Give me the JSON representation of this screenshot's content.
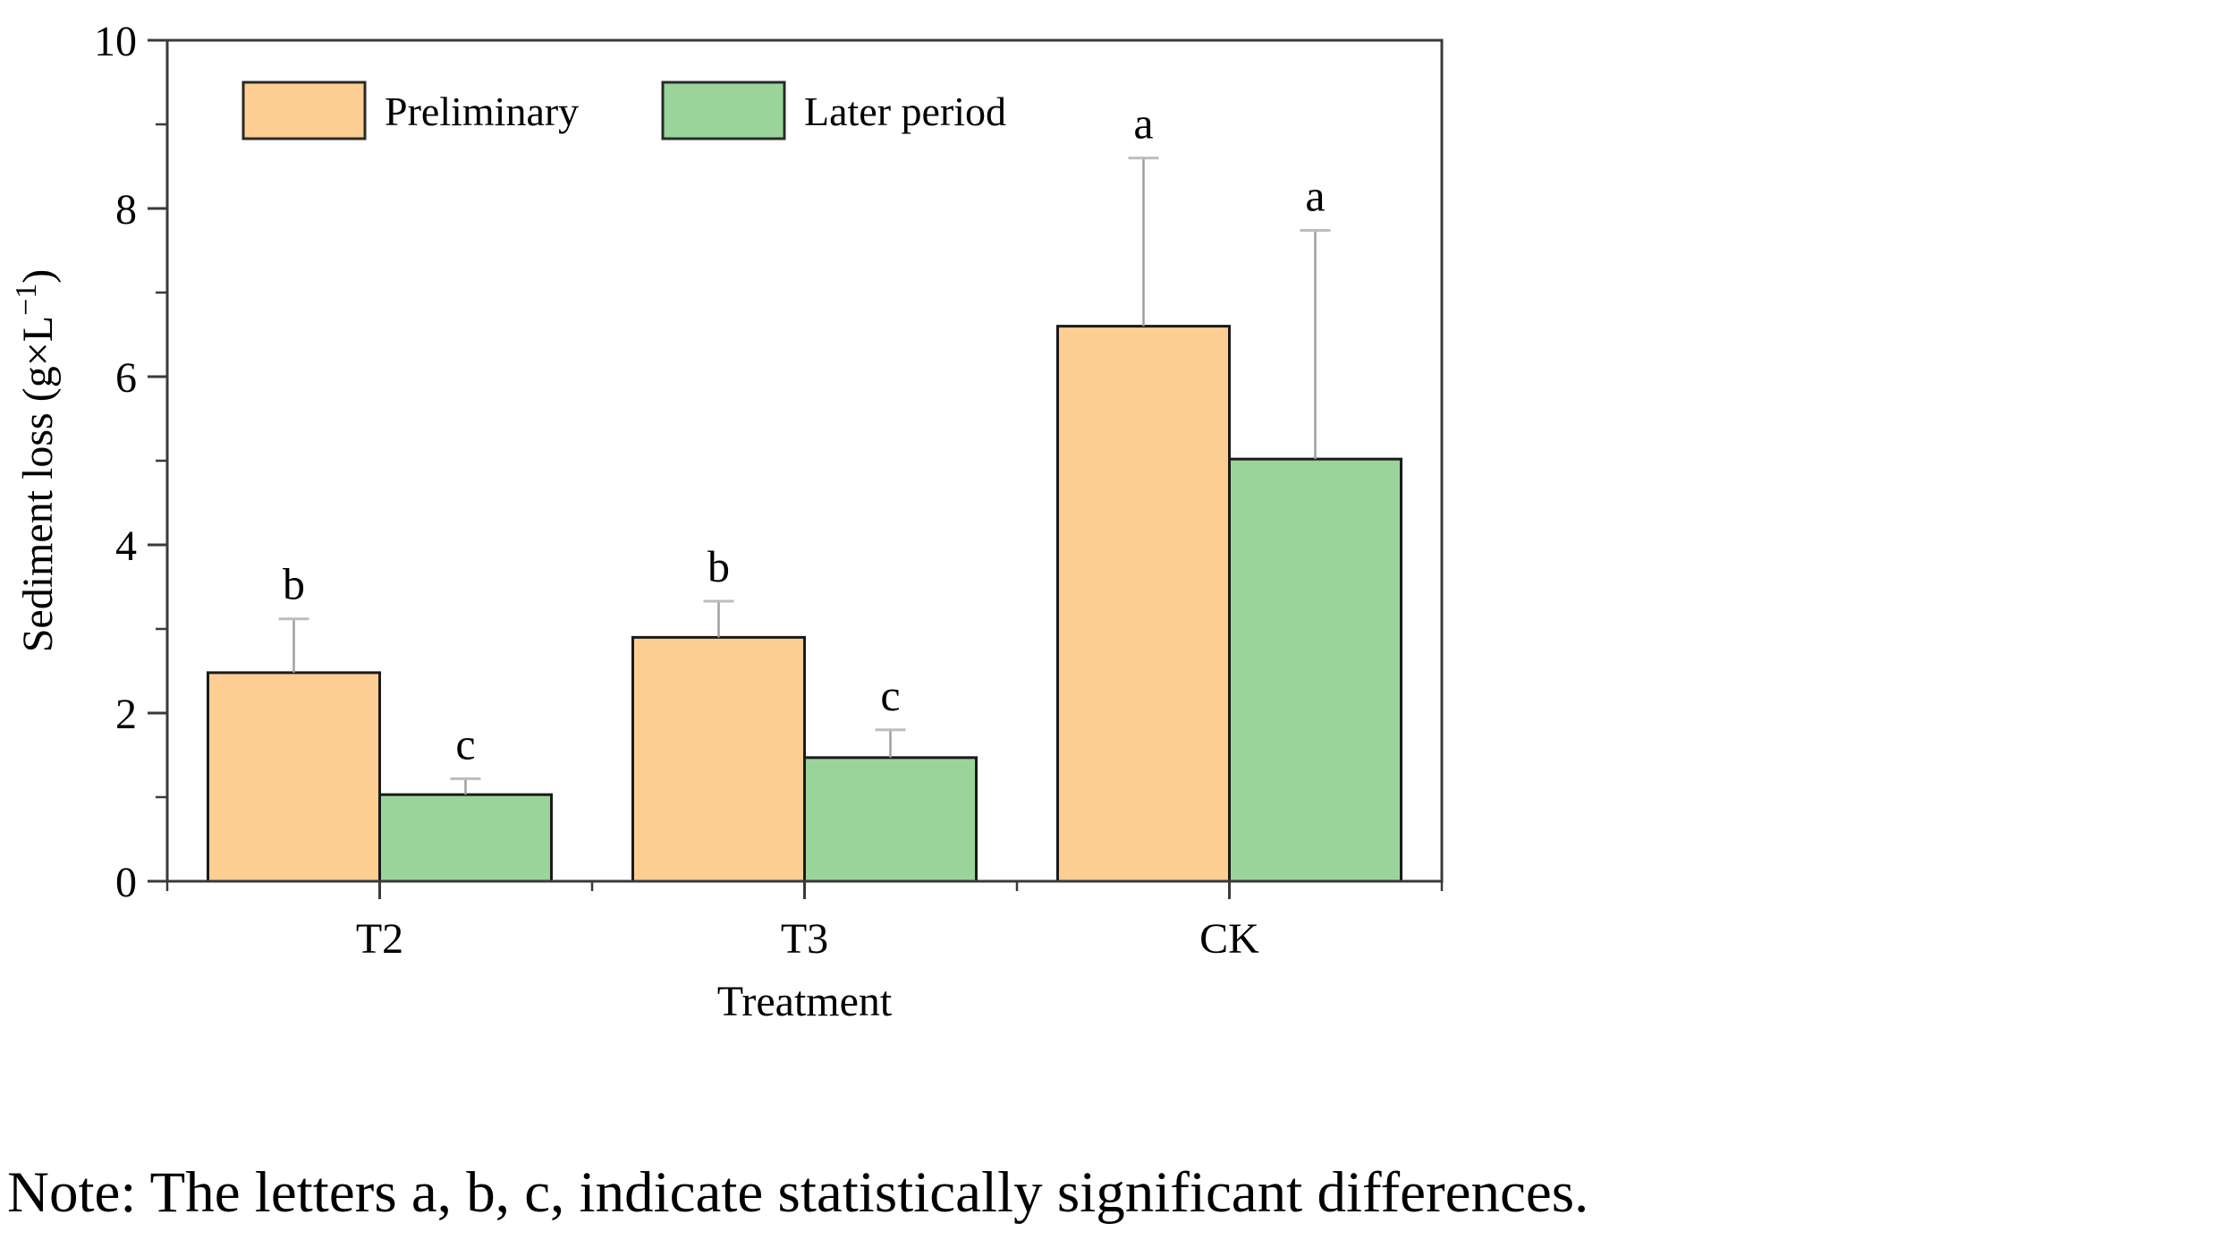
{
  "chart_data": {
    "type": "bar",
    "title": "",
    "xlabel": "Treatment",
    "ylabel": "Sediment loss (g×L⁻¹)",
    "ylabel_base": "Sediment loss (g×L",
    "ylabel_sup": "−1",
    "ylabel_close": ")",
    "categories": [
      "T2",
      "T3",
      "CK"
    ],
    "series": [
      {
        "name": "Preliminary",
        "color": "#FDCE92",
        "values": [
          2.48,
          2.9,
          6.6
        ],
        "error_plus": [
          0.64,
          0.43,
          2.0
        ],
        "sig_letters": [
          "b",
          "b",
          "a"
        ]
      },
      {
        "name": "Later period",
        "color": "#9AD49B",
        "values": [
          1.03,
          1.47,
          5.02
        ],
        "error_plus": [
          0.19,
          0.33,
          2.72
        ],
        "sig_letters": [
          "c",
          "c",
          "a"
        ]
      }
    ],
    "ylim": [
      0,
      10
    ],
    "yticks_major": [
      0,
      2,
      4,
      6,
      8,
      10
    ],
    "yticks_minor": [
      1,
      3,
      5,
      7,
      9
    ],
    "legend_position": "top-left-inside",
    "grid": false,
    "colors": {
      "bar_border": "#1a1a1a",
      "axis": "#3a3a3a",
      "error_bar": "#9f9f9f",
      "error_cap": "#bdbdbd",
      "text": "#000000"
    }
  },
  "note": {
    "text": "Note: The letters a, b, c, indicate statistically significant differences."
  }
}
